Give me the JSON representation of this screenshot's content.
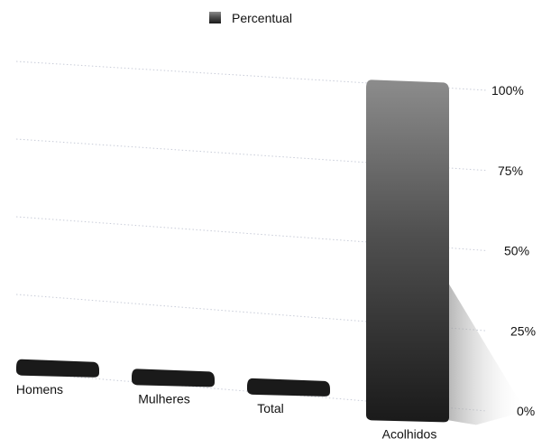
{
  "chart_data": {
    "type": "bar",
    "title": "",
    "xlabel": "",
    "ylabel": "",
    "categories": [
      "Homens",
      "Mulheres",
      "Total",
      "Acolhidos"
    ],
    "series": [
      {
        "name": "Percentual",
        "values": [
          1,
          1,
          1,
          100
        ]
      }
    ],
    "ylim": [
      0,
      100
    ],
    "y_ticks": [
      "0%",
      "25%",
      "50%",
      "75%",
      "100%"
    ],
    "grid": true,
    "legend_position": "top-center",
    "colors": {
      "bar_dark": "#1a1a1a",
      "bar_light": "#8c8c8c",
      "grid": "#c8ccd8",
      "text": "#111111"
    }
  }
}
